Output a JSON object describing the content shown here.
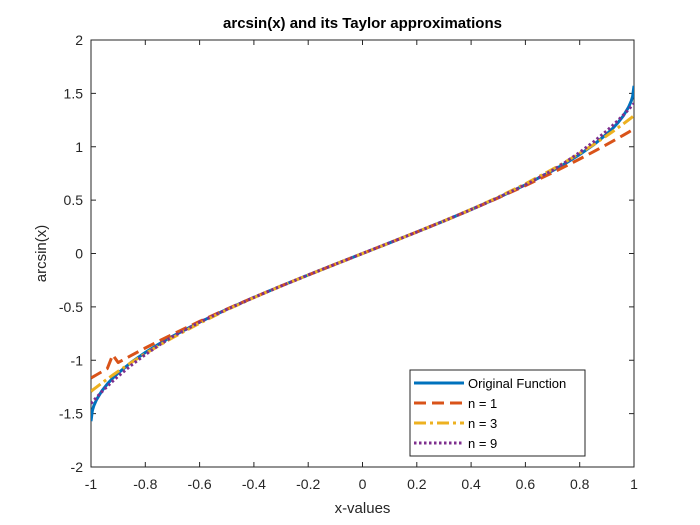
{
  "chart_data": {
    "type": "line",
    "title": "arcsin(x) and its Taylor approximations",
    "xlabel": "x-values",
    "ylabel": "arcsin(x)",
    "xlim": [
      -1,
      1
    ],
    "ylim": [
      -2,
      2
    ],
    "xticks": [
      "-1",
      "-0.8",
      "-0.6",
      "-0.4",
      "-0.2",
      "0",
      "0.2",
      "0.4",
      "0.6",
      "0.8",
      "1"
    ],
    "yticks": [
      "-2",
      "-1.5",
      "-1",
      "-0.5",
      "0",
      "0.5",
      "1",
      "1.5",
      "2"
    ],
    "grid": false,
    "legend_position": "bottom-right",
    "x": [
      -1,
      -0.995,
      -0.99,
      -0.98,
      -0.96,
      -0.94,
      -0.92,
      -0.9,
      -0.85,
      -0.8,
      -0.75,
      -0.7,
      -0.6,
      -0.5,
      -0.4,
      -0.3,
      -0.2,
      -0.1,
      0,
      0.1,
      0.2,
      0.3,
      0.4,
      0.5,
      0.6,
      0.7,
      0.75,
      0.8,
      0.85,
      0.9,
      0.92,
      0.94,
      0.96,
      0.98,
      0.99,
      0.995,
      1
    ],
    "series": [
      {
        "name": "Original Function",
        "color": "#0072BD",
        "style": "solid",
        "values": [
          -1.5708,
          -1.4708,
          -1.4294,
          -1.3705,
          -1.287,
          -1.2226,
          -1.1681,
          -1.1198,
          -1.016,
          -0.9273,
          -0.8481,
          -0.7754,
          -0.6435,
          -0.5236,
          -0.4115,
          -0.3047,
          -0.2014,
          -0.1002,
          0,
          0.1002,
          0.2014,
          0.3047,
          0.4115,
          0.5236,
          0.6435,
          0.7754,
          0.8481,
          0.9273,
          1.016,
          1.1198,
          1.1681,
          1.2226,
          1.287,
          1.3705,
          1.4294,
          1.4708,
          1.5708
        ]
      },
      {
        "name": "n = 1",
        "color": "#D95319",
        "style": "dashed",
        "values": [
          -1.1667,
          -1.1592,
          -1.1517,
          -1.1369,
          -1.1075,
          -1.0784,
          -0.9498,
          -1.0215,
          -0.9523,
          -0.8853,
          -0.8203,
          -0.7572,
          -0.636,
          -0.5208,
          -0.4107,
          -0.3045,
          -0.2013,
          -0.1002,
          0,
          0.1002,
          0.2013,
          0.3045,
          0.4107,
          0.5208,
          0.636,
          0.7572,
          0.8203,
          0.8853,
          0.9523,
          1.0215,
          1.0498,
          1.0784,
          1.1075,
          1.1369,
          1.1517,
          1.1592,
          1.1667
        ]
      },
      {
        "name": "n = 3",
        "color": "#EDB120",
        "style": "dashdot",
        "values": [
          -1.2917,
          -1.2816,
          -1.2715,
          -1.2518,
          -1.2134,
          -1.176,
          -1.1396,
          -1.104,
          -1.0189,
          -0.9385,
          -0.8622,
          -0.7895,
          -0.6528,
          -0.5283,
          -0.413,
          -0.305,
          -0.2013,
          -0.1002,
          0,
          0.1002,
          0.2013,
          0.305,
          0.413,
          0.5283,
          0.6528,
          0.7895,
          0.8622,
          0.9385,
          1.0189,
          1.104,
          1.1396,
          1.176,
          1.2134,
          1.2518,
          1.2715,
          1.2816,
          1.2917
        ]
      },
      {
        "name": "n = 9",
        "color": "#7E2F8E",
        "style": "dotted",
        "values": [
          -1.4055,
          -1.3912,
          -1.377,
          -1.349,
          -1.2955,
          -1.2446,
          -1.1962,
          -1.15,
          -1.0436,
          -0.9474,
          -0.8597,
          -0.7794,
          -0.6433,
          -0.5236,
          -0.4115,
          -0.3047,
          -0.2014,
          -0.1002,
          0,
          0.1002,
          0.2014,
          0.3047,
          0.4115,
          0.5236,
          0.6433,
          0.7794,
          0.8597,
          0.9474,
          1.0436,
          1.15,
          1.1962,
          1.2446,
          1.2955,
          1.349,
          1.377,
          1.3912,
          1.4055
        ]
      }
    ]
  }
}
